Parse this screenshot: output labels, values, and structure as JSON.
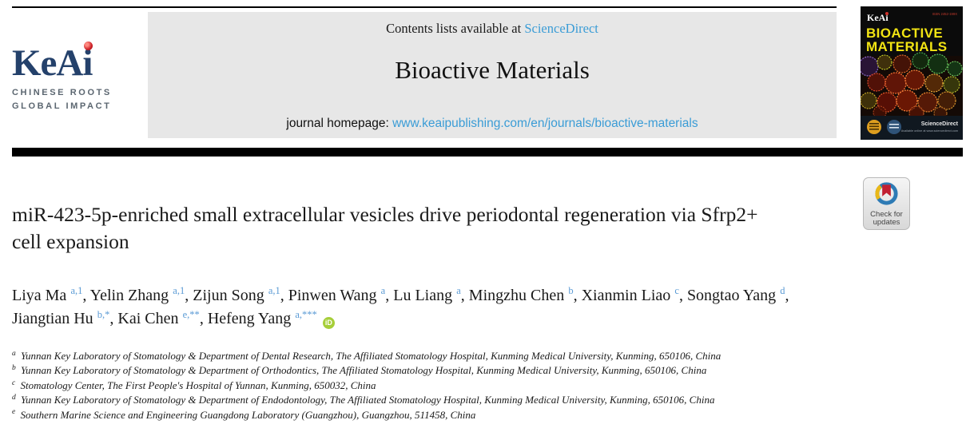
{
  "header": {
    "logo": {
      "brand": "KeAi",
      "tagline_line1": "CHINESE ROOTS",
      "tagline_line2": "GLOBAL IMPACT",
      "brand_color": "#24416b",
      "dot_color": "#cc2027",
      "tagline_color": "#5b6670"
    },
    "banner": {
      "contents_prefix": "Contents lists available at ",
      "sciencedirect_link": "ScienceDirect",
      "journal_title": "Bioactive Materials",
      "homepage_prefix": "journal homepage: ",
      "homepage_url": "www.keaipublishing.com/en/journals/bioactive-materials",
      "background_color": "#e7e7e7",
      "link_color": "#3a9cd6"
    },
    "cover": {
      "brand": "KeAi",
      "issn_text": "ISSN 2452-199X",
      "title_line1": "BIOACTIVE",
      "title_line2": "MATERIALS",
      "title_color": "#f2e413",
      "sciencedirect_label": "ScienceDirect",
      "availability_text": "Available online at www.sciencedirect.com"
    }
  },
  "article": {
    "title": "miR-423-5p-enriched small extracellular vesicles drive periodontal regeneration via Sfrp2+ cell expansion",
    "authors": [
      {
        "name": "Liya Ma",
        "sup": "a,1"
      },
      {
        "name": "Yelin Zhang",
        "sup": "a,1"
      },
      {
        "name": "Zijun Song",
        "sup": "a,1"
      },
      {
        "name": "Pinwen Wang",
        "sup": "a"
      },
      {
        "name": "Lu Liang",
        "sup": "a"
      },
      {
        "name": "Mingzhu Chen",
        "sup": "b"
      },
      {
        "name": "Xianmin Liao",
        "sup": "c"
      },
      {
        "name": "Songtao Yang",
        "sup": "d"
      },
      {
        "name": "Jiangtian Hu",
        "sup": "b,*"
      },
      {
        "name": "Kai Chen",
        "sup": "e,**"
      },
      {
        "name": "Hefeng Yang",
        "sup": "a,***"
      }
    ],
    "orcid_label": "iD",
    "affiliations": [
      {
        "sup": "a",
        "text": "Yunnan Key Laboratory of Stomatology & Department of Dental Research, The Affiliated Stomatology Hospital, Kunming Medical University, Kunming, 650106, China"
      },
      {
        "sup": "b",
        "text": "Yunnan Key Laboratory of Stomatology & Department of Orthodontics, The Affiliated Stomatology Hospital, Kunming Medical University, Kunming, 650106, China"
      },
      {
        "sup": "c",
        "text": "Stomatology Center, The First People's Hospital of Yunnan, Kunming, 650032, China"
      },
      {
        "sup": "d",
        "text": "Yunnan Key Laboratory of Stomatology & Department of Endodontology, The Affiliated Stomatology Hospital, Kunming Medical University, Kunming, 650106, China"
      },
      {
        "sup": "e",
        "text": "Southern Marine Science and Engineering Guangdong Laboratory (Guangzhou), Guangzhou, 511458, China"
      }
    ],
    "check_badge": {
      "line1": "Check for",
      "line2": "updates"
    }
  }
}
